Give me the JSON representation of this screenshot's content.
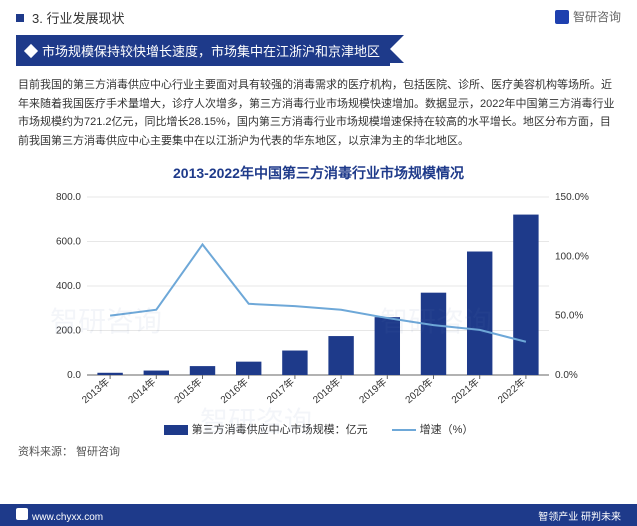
{
  "brand_name": "智研咨询",
  "section_label": "3. 行业发展现状",
  "ribbon_text": "市场规模保持较快增长速度，市场集中在江浙沪和京津地区",
  "body_text": "目前我国的第三方消毒供应中心行业主要面对具有较强的消毒需求的医疗机构，包括医院、诊所、医疗美容机构等场所。近年来随着我国医疗手术量增大，诊疗人次增多，第三方消毒行业市场规模快速增加。数据显示，2022年中国第三方消毒行业市场规模约为721.2亿元，同比增长28.15%，国内第三方消毒行业市场规模增速保持在较高的水平增长。地区分布方面，目前我国第三方消毒供应中心主要集中在以江浙沪为代表的华东地区，以京津为主的华北地区。",
  "chart": {
    "title": "2013-2022年中国第三方消毒行业市场规模情况",
    "categories": [
      "2013年",
      "2014年",
      "2015年",
      "2016年",
      "2017年",
      "2018年",
      "2019年",
      "2020年",
      "2021年",
      "2022年"
    ],
    "bar_values": [
      10,
      20,
      40,
      60,
      110,
      175,
      260,
      370,
      555,
      721
    ],
    "line_values": [
      50,
      55,
      110,
      60,
      58,
      55,
      48,
      42,
      38,
      28
    ],
    "y1_label_ticks": [
      0,
      200,
      400,
      600,
      800
    ],
    "y2_label_ticks": [
      "0.0%",
      "50.0%",
      "100.0%",
      "150.0%"
    ],
    "y1_max": 800,
    "y2_max": 150,
    "bar_color": "#1e3a8a",
    "line_color": "#6ea8d8",
    "grid_color": "#d0d0d0",
    "axis_color": "#666666",
    "text_color": "#333333",
    "background": "#ffffff",
    "bar_width_ratio": 0.55,
    "legend_bar": "第三方消毒供应中心市场规模：亿元",
    "legend_line": "增速（%）"
  },
  "source_label": "资料来源：",
  "source_value": "智研咨询",
  "footer_left": "www.chyxx.com",
  "footer_right": "智领产业 研判未来",
  "watermark_text": "智研咨询",
  "colors": {
    "primary": "#1e3a8a",
    "text": "#333333",
    "grid": "#d0d0d0"
  }
}
